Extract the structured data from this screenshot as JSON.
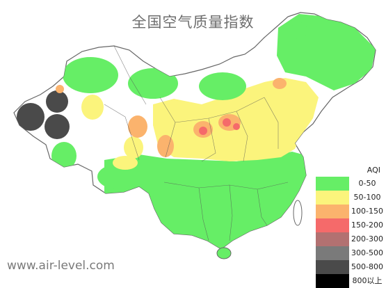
{
  "title": "全国空气质量指数",
  "watermark": "www.air-level.com",
  "legend": {
    "title": "AQI",
    "items": [
      {
        "label": "0-50",
        "color": "#66ee66"
      },
      {
        "label": "50-100",
        "color": "#fbf47c"
      },
      {
        "label": "100-150",
        "color": "#fbb36d"
      },
      {
        "label": "150-200",
        "color": "#f56a6a"
      },
      {
        "label": "200-300",
        "color": "#b27171"
      },
      {
        "label": "300-500",
        "color": "#7a7a7a"
      },
      {
        "label": "500-800",
        "color": "#4a4a4a"
      },
      {
        "label": "800以上",
        "color": "#000000"
      }
    ]
  },
  "colors": {
    "background": "#ffffff",
    "border": "#666666",
    "title": "#6d6d6d",
    "watermark": "#7a7a7a"
  }
}
